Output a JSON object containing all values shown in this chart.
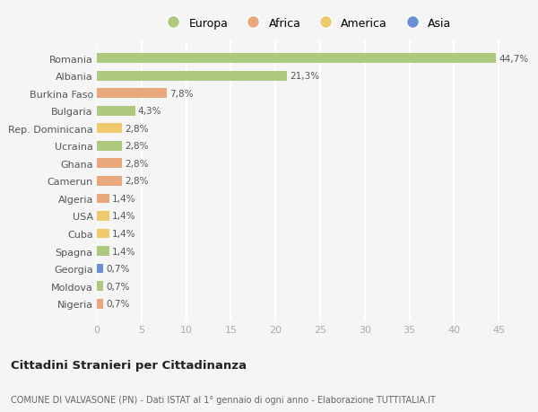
{
  "categories": [
    "Romania",
    "Albania",
    "Burkina Faso",
    "Bulgaria",
    "Rep. Dominicana",
    "Ucraina",
    "Ghana",
    "Camerun",
    "Algeria",
    "USA",
    "Cuba",
    "Spagna",
    "Georgia",
    "Moldova",
    "Nigeria"
  ],
  "values": [
    44.7,
    21.3,
    7.8,
    4.3,
    2.8,
    2.8,
    2.8,
    2.8,
    1.4,
    1.4,
    1.4,
    1.4,
    0.7,
    0.7,
    0.7
  ],
  "labels": [
    "44,7%",
    "21,3%",
    "7,8%",
    "4,3%",
    "2,8%",
    "2,8%",
    "2,8%",
    "2,8%",
    "1,4%",
    "1,4%",
    "1,4%",
    "1,4%",
    "0,7%",
    "0,7%",
    "0,7%"
  ],
  "continents": [
    "Europa",
    "Europa",
    "Africa",
    "Europa",
    "America",
    "Europa",
    "Africa",
    "Africa",
    "Africa",
    "America",
    "America",
    "Europa",
    "Asia",
    "Europa",
    "Africa"
  ],
  "colors": {
    "Europa": "#adc97e",
    "Africa": "#e8a87c",
    "America": "#f0c96e",
    "Asia": "#6b8fd4"
  },
  "legend_order": [
    "Europa",
    "Africa",
    "America",
    "Asia"
  ],
  "title": "Cittadini Stranieri per Cittadinanza",
  "subtitle": "COMUNE DI VALVASONE (PN) - Dati ISTAT al 1° gennaio di ogni anno - Elaborazione TUTTITALIA.IT",
  "xlim": [
    0,
    47
  ],
  "xticks": [
    0,
    5,
    10,
    15,
    20,
    25,
    30,
    35,
    40,
    45
  ],
  "background_color": "#f5f5f5",
  "grid_color": "#ffffff",
  "bar_height": 0.55
}
